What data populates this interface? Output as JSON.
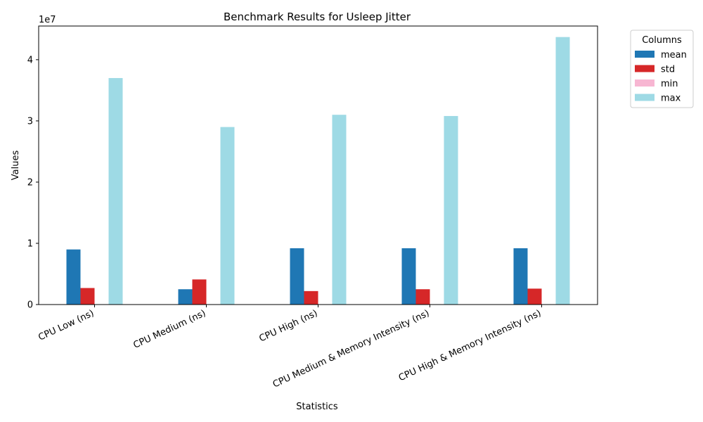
{
  "chart_data": {
    "type": "bar",
    "title": "Benchmark Results for Usleep Jitter",
    "xlabel": "Statistics",
    "ylabel": "Values",
    "y_offset_label": "1e7",
    "ylim": [
      0,
      45500000
    ],
    "yticks": [
      0,
      10000000,
      20000000,
      30000000,
      40000000
    ],
    "ytick_labels": [
      "0",
      "1",
      "2",
      "3",
      "4"
    ],
    "categories": [
      "CPU Low (ns)",
      "CPU Medium (ns)",
      "CPU High (ns)",
      "CPU Medium & Memory Intensity (ns)",
      "CPU High & Memory Intensity (ns)"
    ],
    "series": [
      {
        "name": "mean",
        "color": "#1f77b4",
        "values": [
          9000000,
          2500000,
          9200000,
          9200000,
          9200000
        ]
      },
      {
        "name": "std",
        "color": "#d62728",
        "values": [
          2700000,
          4100000,
          2200000,
          2500000,
          2600000
        ]
      },
      {
        "name": "min",
        "color": "#f7b6d2",
        "values": [
          50000,
          50000,
          50000,
          50000,
          50000
        ]
      },
      {
        "name": "max",
        "color": "#9edae5",
        "values": [
          37000000,
          29000000,
          31000000,
          30800000,
          43700000
        ]
      }
    ],
    "legend": {
      "title": "Columns",
      "placement": "outside-top-right"
    },
    "grid": false
  }
}
